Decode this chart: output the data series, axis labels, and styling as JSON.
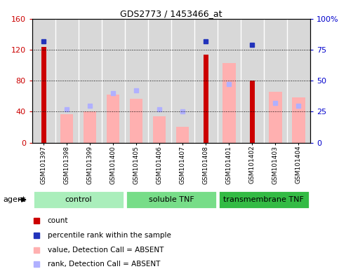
{
  "title": "GDS2773 / 1453466_at",
  "samples": [
    "GSM101397",
    "GSM101398",
    "GSM101399",
    "GSM101400",
    "GSM101405",
    "GSM101406",
    "GSM101407",
    "GSM101408",
    "GSM101401",
    "GSM101402",
    "GSM101403",
    "GSM101404"
  ],
  "groups": [
    {
      "label": "control",
      "color": "#aaeebb",
      "start": 0,
      "end": 3
    },
    {
      "label": "soluble TNF",
      "color": "#77dd88",
      "start": 4,
      "end": 7
    },
    {
      "label": "transmembrane TNF",
      "color": "#33bb44",
      "start": 8,
      "end": 11
    }
  ],
  "count_values": [
    124,
    0,
    0,
    0,
    0,
    0,
    0,
    114,
    0,
    80,
    0,
    0
  ],
  "percentile_rank": [
    82,
    0,
    0,
    0,
    0,
    0,
    0,
    82,
    0,
    79,
    0,
    0
  ],
  "absent_value": [
    0,
    37,
    40,
    62,
    57,
    34,
    20,
    0,
    103,
    0,
    66,
    58
  ],
  "absent_rank": [
    0,
    27,
    30,
    40,
    42,
    27,
    25,
    0,
    47,
    0,
    32,
    30
  ],
  "left_color": "#cc0000",
  "right_color": "#0000cc",
  "absent_bar_color": "#ffb0b0",
  "absent_rank_color": "#b0b0ff",
  "present_rank_color": "#2233bb",
  "ylim_left": [
    0,
    160
  ],
  "ylim_right": [
    0,
    100
  ],
  "yticks_left": [
    0,
    40,
    80,
    120,
    160
  ],
  "yticks_right": [
    0,
    25,
    50,
    75,
    100
  ],
  "yticklabels_left": [
    "0",
    "40",
    "80",
    "120",
    "160"
  ],
  "yticklabels_right": [
    "0",
    "25",
    "50",
    "75",
    "100%"
  ],
  "bg_color": "#d8d8d8",
  "plot_bg": "#ffffff",
  "legend_items": [
    {
      "color": "#cc0000",
      "label": "count"
    },
    {
      "color": "#2233bb",
      "label": "percentile rank within the sample"
    },
    {
      "color": "#ffb0b0",
      "label": "value, Detection Call = ABSENT"
    },
    {
      "color": "#b0b0ff",
      "label": "rank, Detection Call = ABSENT"
    }
  ]
}
